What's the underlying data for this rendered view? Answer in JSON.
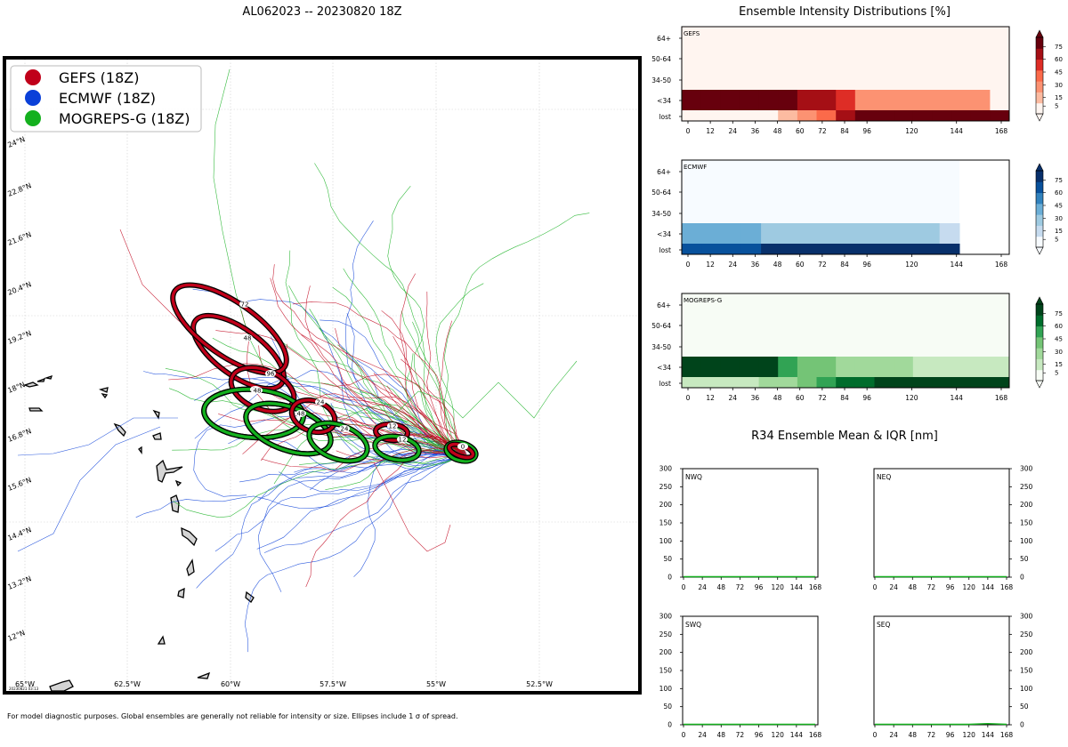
{
  "map_title": "AL062023 -- 20230820 18Z",
  "footnote": "For model diagnostic purposes. Global ensembles are generally not reliable for intensity or size. Ellipses include 1 σ of spread.",
  "watermark": "20230821 03:13",
  "legend": [
    {
      "label": "GEFS (18Z)",
      "color": "#c0001a"
    },
    {
      "label": "ECMWF (18Z)",
      "color": "#0a40d8"
    },
    {
      "label": "MOGREPS-G (18Z)",
      "color": "#14b01e"
    }
  ],
  "map_axes": {
    "lon_labels": [
      "65°W",
      "62.5°W",
      "60°W",
      "57.5°W",
      "55°W",
      "52.5°W"
    ],
    "lat_labels": [
      "24°N",
      "22.8°N",
      "21.6°N",
      "20.4°N",
      "19.2°N",
      "18°N",
      "16.8°N",
      "15.6°N",
      "14.4°N",
      "13.2°N",
      "12°N"
    ]
  },
  "chart_data": [
    {
      "type": "map-track-ensemble",
      "title": "AL062023 -- 20230820 18Z",
      "forecast_hours": [
        0,
        12,
        24,
        48,
        72
      ],
      "series": [
        {
          "name": "GEFS (18Z)",
          "color": "#c0001a",
          "ellipse_labels": [
            "0",
            "12",
            "24",
            "48",
            "72"
          ]
        },
        {
          "name": "ECMWF (18Z)",
          "color": "#0a40d8",
          "ellipse_labels": []
        },
        {
          "name": "MOGREPS-G (18Z)",
          "color": "#14b01e",
          "ellipse_labels": [
            "12",
            "24",
            "48"
          ]
        }
      ]
    },
    {
      "type": "heatmap",
      "title": "Ensemble Intensity Distributions [%]",
      "rows": [
        "64+",
        "50-64",
        "34-50",
        "<34",
        "lost"
      ],
      "x_ticks": [
        0,
        12,
        24,
        36,
        48,
        60,
        72,
        84,
        96,
        120,
        144,
        168
      ],
      "colorbar_ticks": [
        5,
        15,
        30,
        45,
        60,
        75
      ],
      "panels": [
        {
          "name": "GEFS",
          "palette": "reds",
          "rows": {
            "<34": [
              100,
              100,
              100,
              100,
              100,
              80,
              70,
              70,
              55,
              25,
              25,
              25,
              25,
              25,
              25,
              25,
              0
            ],
            "lost": [
              0,
              0,
              0,
              0,
              0,
              10,
              20,
              40,
              60,
              75,
              90,
              90,
              90,
              90,
              90,
              90,
              90
            ]
          }
        },
        {
          "name": "ECMWF",
          "palette": "blues",
          "rows": {
            "<34": [
              40,
              40,
              40,
              40,
              25,
              25,
              25,
              25,
              25,
              25,
              25,
              25,
              25,
              10
            ],
            "lost": [
              60,
              60,
              60,
              60,
              75,
              75,
              75,
              75,
              75,
              75,
              75,
              75,
              75,
              90
            ]
          }
        },
        {
          "name": "MOGREPS-G",
          "palette": "greens",
          "rows": {
            "<34": [
              95,
              95,
              95,
              95,
              80,
              55,
              40,
              40,
              25,
              25,
              25,
              25,
              10,
              10,
              10,
              10,
              10
            ],
            "lost": [
              5,
              5,
              10,
              10,
              15,
              20,
              30,
              45,
              60,
              70,
              75,
              80,
              90,
              90,
              90,
              90,
              90
            ]
          }
        }
      ]
    },
    {
      "type": "line",
      "title": "R34 Ensemble Mean & IQR [nm]",
      "x_ticks": [
        0,
        24,
        48,
        72,
        96,
        120,
        144,
        168
      ],
      "y_ticks": [
        0,
        50,
        100,
        150,
        200,
        250,
        300
      ],
      "ylim": [
        0,
        300
      ],
      "panels": [
        {
          "name": "NWQ",
          "values": [
            0,
            0,
            0,
            0,
            0,
            0,
            0,
            0
          ]
        },
        {
          "name": "NEQ",
          "values": [
            0,
            0,
            0,
            0,
            0,
            0,
            0,
            0
          ]
        },
        {
          "name": "SWQ",
          "values": [
            0,
            0,
            0,
            0,
            0,
            0,
            0,
            0
          ]
        },
        {
          "name": "SEQ",
          "values": [
            0,
            0,
            0,
            0,
            0,
            0,
            2,
            0
          ]
        }
      ]
    }
  ]
}
